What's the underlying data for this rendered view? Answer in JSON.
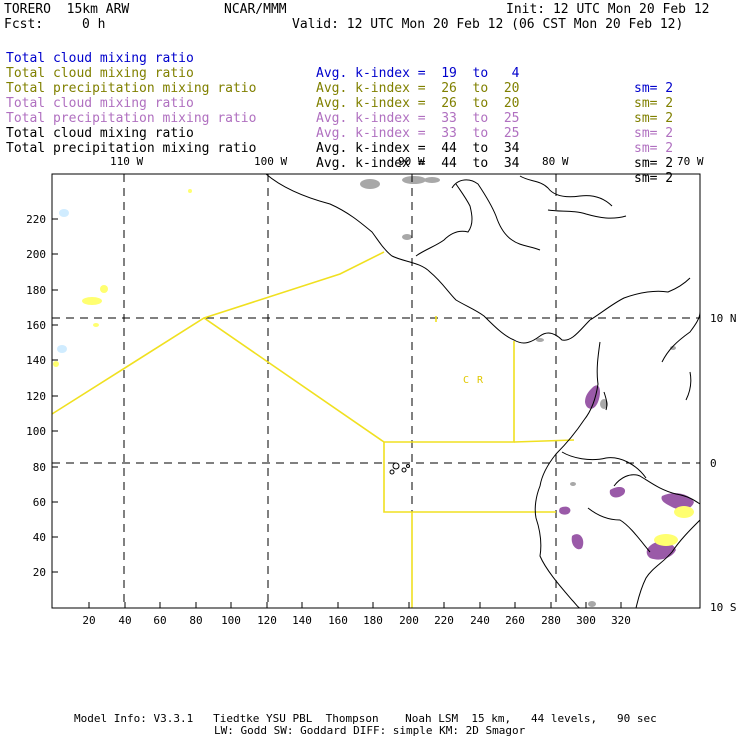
{
  "header": {
    "model_name": "TORERO  15km ARW",
    "org": "NCAR/MMM",
    "init": "Init: 12 UTC Mon 20 Feb 12",
    "fcst_label": "Fcst:",
    "fcst_value": "0 h",
    "valid": "Valid: 12 UTC Mon 20 Feb 12 (06 CST Mon 20 Feb 12)"
  },
  "legend": [
    {
      "field": "Total cloud mixing ratio",
      "index": "Avg. k-index =  19  to   4",
      "sm": "sm= 2",
      "color": "#0000cc"
    },
    {
      "field": "Total cloud mixing ratio",
      "index": "Avg. k-index =  26  to  20",
      "sm": "sm= 2",
      "color": "#808000"
    },
    {
      "field": "Total precipitation mixing ratio",
      "index": "Avg. k-index =  26  to  20",
      "sm": "sm= 2",
      "color": "#808000"
    },
    {
      "field": "Total cloud mixing ratio",
      "index": "Avg. k-index =  33  to  25",
      "sm": "sm= 2",
      "color": "#b070c0"
    },
    {
      "field": "Total precipitation mixing ratio",
      "index": "Avg. k-index =  33  to  25",
      "sm": "sm= 2",
      "color": "#b070c0"
    },
    {
      "field": "Total cloud mixing ratio",
      "index": "Avg. k-index =  44  to  34",
      "sm": "sm= 2",
      "color": "#000000"
    },
    {
      "field": "Total precipitation mixing ratio",
      "index": "Avg. k-index =  44  to  34",
      "sm": "sm= 2",
      "color": "#000000"
    }
  ],
  "map": {
    "x_ticks": [
      "20",
      "40",
      "60",
      "80",
      "100",
      "120",
      "140",
      "160",
      "180",
      "200",
      "220",
      "240",
      "260",
      "280",
      "300",
      "320"
    ],
    "y_ticks": [
      "20",
      "40",
      "60",
      "80",
      "100",
      "120",
      "140",
      "160",
      "180",
      "200",
      "220"
    ],
    "lon_labels": [
      "110 W",
      "100 W",
      "90 W",
      "80 W",
      "70 W"
    ],
    "lat_labels": [
      "10 N",
      "0",
      "10 S"
    ],
    "region_label": "C  R",
    "colors": {
      "boundary": "#f0e020",
      "coast": "#000000",
      "cloud_gray": "#a8a8a8",
      "cloud_purple": "#9a5aa8",
      "precip_yellow": "#ffff70",
      "light_blue": "#d0ecff",
      "grid": "#000000"
    }
  },
  "footer": {
    "line1": "Model Info: V3.3.1   Tiedtke YSU PBL  Thompson    Noah LSM  15 km,   44 levels,   90 sec",
    "line2": "LW: Godd SW: Goddard DIFF: simple KM: 2D Smagor"
  }
}
